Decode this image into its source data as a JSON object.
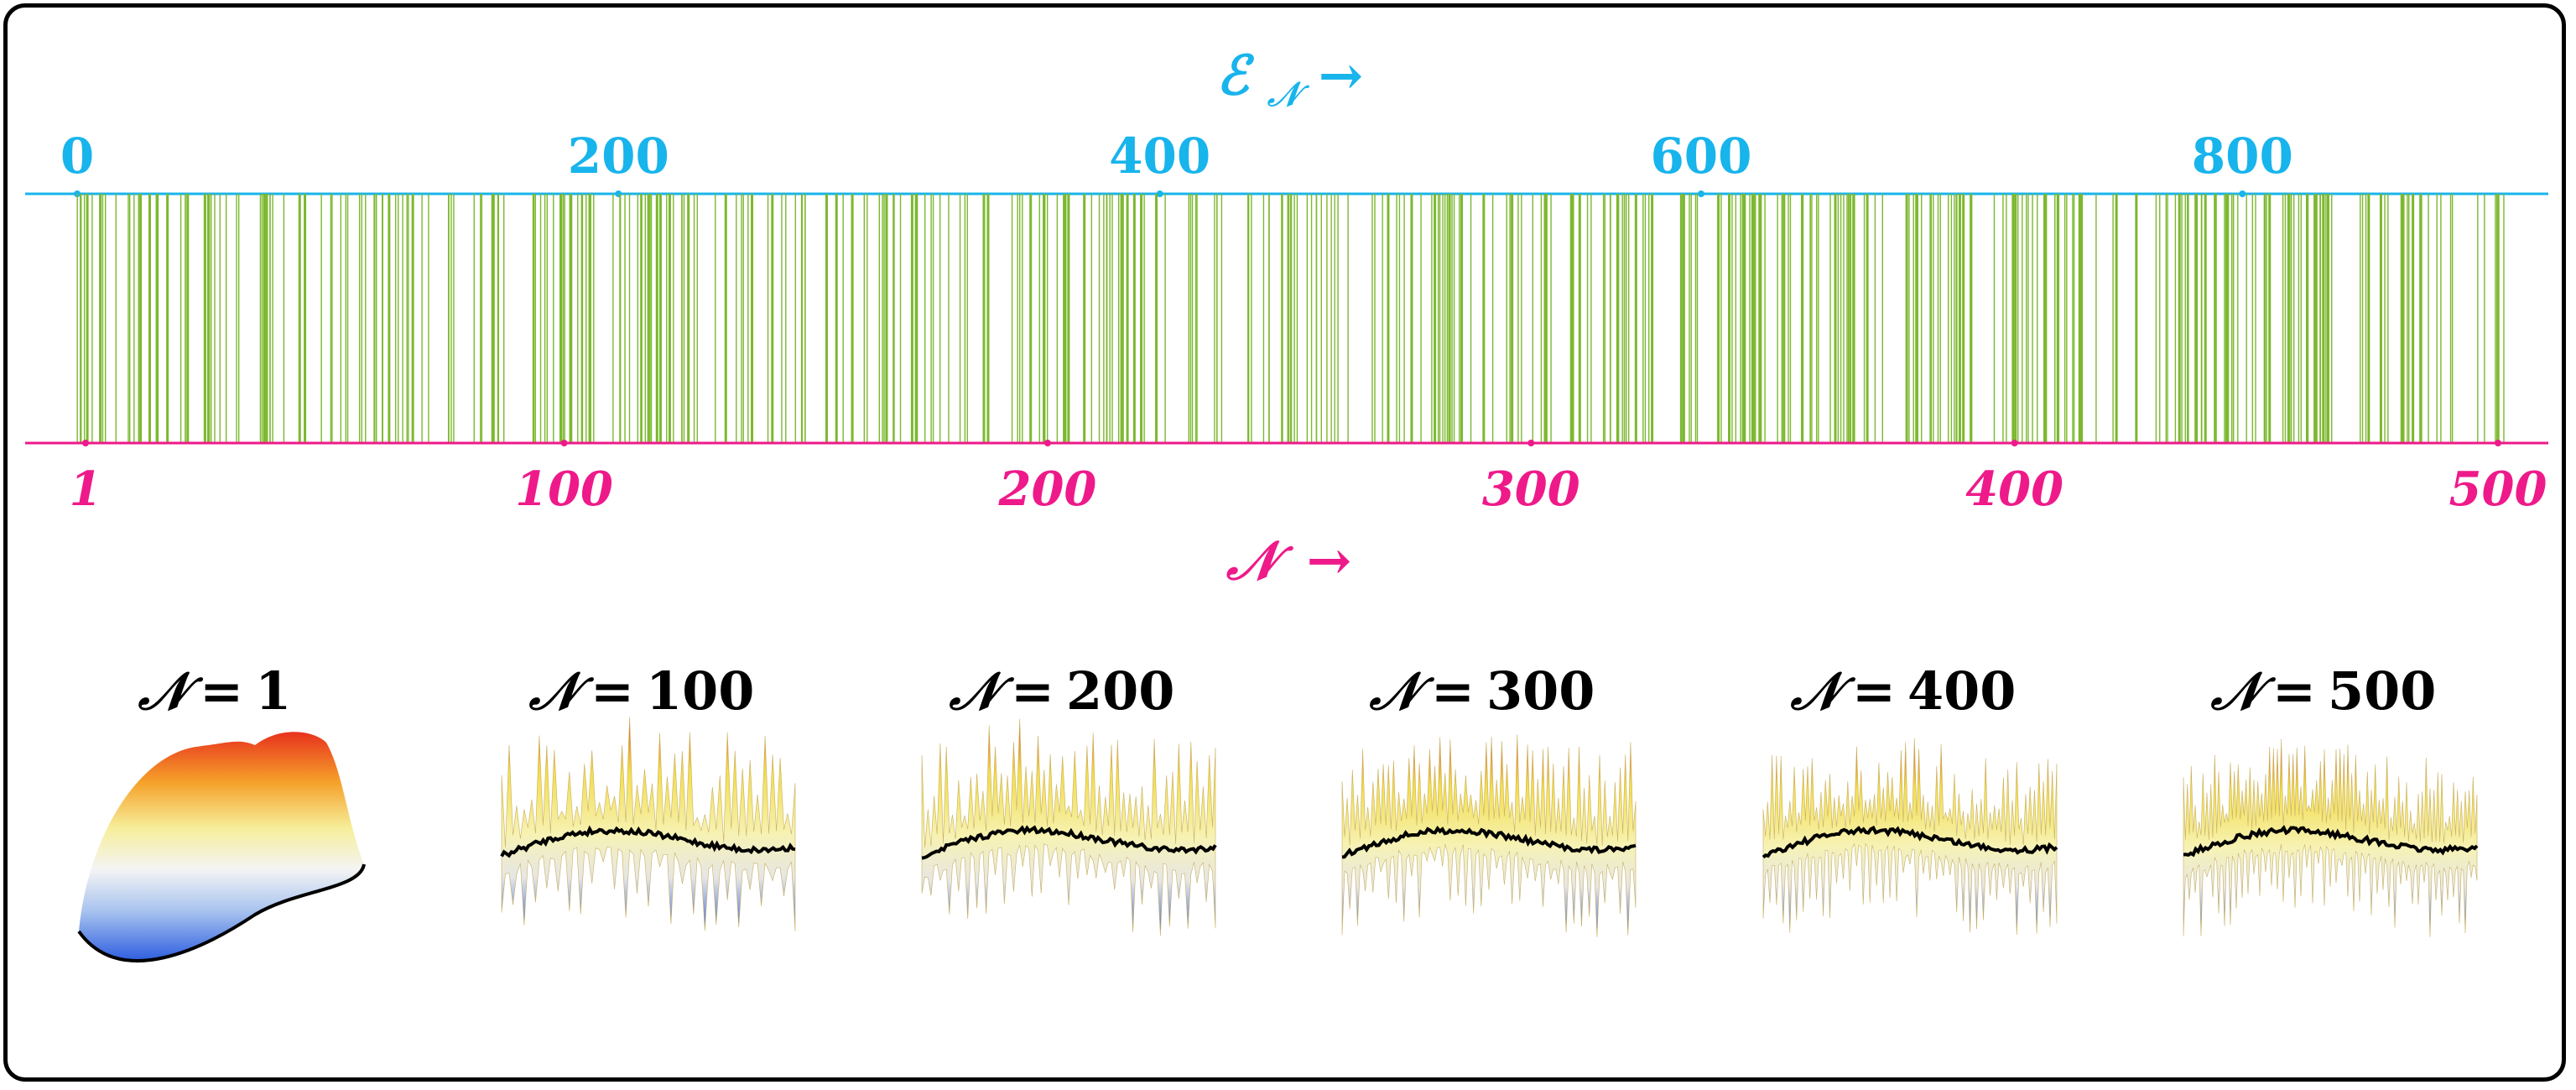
{
  "colors": {
    "energy_axis": "#18b4ec",
    "n_axis": "#ee1a8a",
    "lines": "#7cb82f",
    "frame": "#000000"
  },
  "chart_data": {
    "type": "spectrum",
    "title_top": "𝓔𝓝 →",
    "energy_label": "ℰ",
    "energy_subscript": "𝒩",
    "energy_arrow": "→",
    "n_label": "𝒩",
    "n_arrow": "→",
    "energy_ticks": [
      "0",
      "200",
      "400",
      "600",
      "800"
    ],
    "energy_tick_values": [
      0,
      200,
      400,
      600,
      800
    ],
    "energy_range": [
      0,
      900
    ],
    "n_ticks": [
      "1",
      "100",
      "200",
      "300",
      "400",
      "500"
    ],
    "n_tick_values": [
      1,
      100,
      200,
      300,
      400,
      500
    ],
    "n_range": [
      1,
      500
    ],
    "num_levels": 500,
    "level_energy_max": 900
  },
  "panels": [
    {
      "label_n": "𝒩",
      "eq": "=",
      "value": "1",
      "kind": "smooth"
    },
    {
      "label_n": "𝒩",
      "eq": "=",
      "value": "100",
      "kind": "rough"
    },
    {
      "label_n": "𝒩",
      "eq": "=",
      "value": "200",
      "kind": "rough"
    },
    {
      "label_n": "𝒩",
      "eq": "=",
      "value": "300",
      "kind": "rough"
    },
    {
      "label_n": "𝒩",
      "eq": "=",
      "value": "400",
      "kind": "rough"
    },
    {
      "label_n": "𝒩",
      "eq": "=",
      "value": "500",
      "kind": "rough"
    }
  ]
}
